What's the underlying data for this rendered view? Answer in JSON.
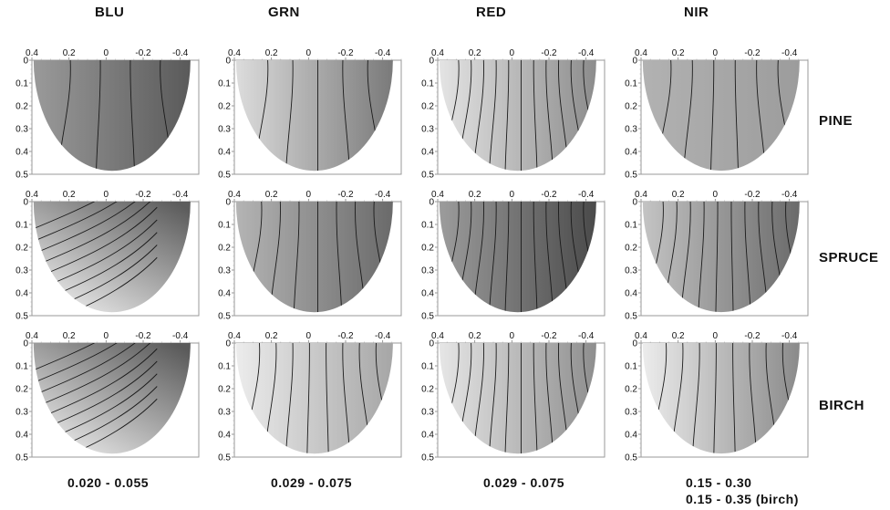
{
  "figure": {
    "columns": [
      "BLU",
      "GRN",
      "RED",
      "NIR"
    ],
    "rows": [
      "PINE",
      "SPRUCE",
      "BIRCH"
    ],
    "ranges": [
      [
        "0.020 - 0.055"
      ],
      [
        "0.029 - 0.075"
      ],
      [
        "0.029 - 0.075"
      ],
      [
        "0.15 - 0.30",
        "0.15 - 0.35 (birch)"
      ]
    ]
  },
  "chart_data": {
    "type": "heatmap",
    "panel_count": 12,
    "x_ticks": [
      "0.4",
      "0.2",
      "0",
      "-0.2",
      "-0.4"
    ],
    "y_ticks": [
      "0",
      "0.1",
      "0.2",
      "0.3",
      "0.4",
      "0.5"
    ],
    "xlim": [
      0.4,
      -0.5
    ],
    "ylim": [
      0,
      0.5
    ],
    "x_axis_position": "top",
    "grid": false,
    "colormap": "grayscale",
    "panels": [
      {
        "row": "PINE",
        "column": "BLU",
        "contour_lines": 4,
        "gradient": "left-light-to-right-dark"
      },
      {
        "row": "PINE",
        "column": "GRN",
        "contour_lines": 5,
        "gradient": "left-light-to-right-dark"
      },
      {
        "row": "PINE",
        "column": "RED",
        "contour_lines": 11,
        "gradient": "left-light-to-right-dark"
      },
      {
        "row": "PINE",
        "column": "NIR",
        "contour_lines": 6,
        "gradient": "left-light-to-right-dark"
      },
      {
        "row": "SPRUCE",
        "column": "BLU",
        "contour_lines": 9,
        "gradient": "bottom-left-light-to-top-right-dark"
      },
      {
        "row": "SPRUCE",
        "column": "GRN",
        "contour_lines": 7,
        "gradient": "left-light-to-right-dark"
      },
      {
        "row": "SPRUCE",
        "column": "RED",
        "contour_lines": 11,
        "gradient": "left-light-to-right-dark"
      },
      {
        "row": "SPRUCE",
        "column": "NIR",
        "contour_lines": 10,
        "gradient": "left-light-to-right-dark"
      },
      {
        "row": "BIRCH",
        "column": "BLU",
        "contour_lines": 9,
        "gradient": "bottom-left-light-to-top-right-dark"
      },
      {
        "row": "BIRCH",
        "column": "GRN",
        "contour_lines": 8,
        "gradient": "left-light-to-right-dark"
      },
      {
        "row": "BIRCH",
        "column": "RED",
        "contour_lines": 11,
        "gradient": "left-light-to-right-dark"
      },
      {
        "row": "BIRCH",
        "column": "NIR",
        "contour_lines": 8,
        "gradient": "left-light-to-right-dark"
      }
    ],
    "colors": {
      "pine_blu": [
        "#9a9a9a",
        "#5a5a5a"
      ],
      "pine_grn": [
        "#dcdcdc",
        "#7a7a7a"
      ],
      "pine_red": [
        "#e4e4e4",
        "#8c8c8c"
      ],
      "pine_nir": [
        "#b2b2b2",
        "#9c9c9c"
      ],
      "spruce_blu": [
        "#f2f2f2",
        "#5c5c5c"
      ],
      "spruce_grn": [
        "#b4b4b4",
        "#6a6a6a"
      ],
      "spruce_red": [
        "#9c9c9c",
        "#4a4a4a"
      ],
      "spruce_nir": [
        "#c4c4c4",
        "#6a6a6a"
      ],
      "birch_blu": [
        "#f0f0f0",
        "#5a5a5a"
      ],
      "birch_grn": [
        "#ececec",
        "#a6a6a6"
      ],
      "birch_red": [
        "#e6e6e6",
        "#8e8e8e"
      ],
      "birch_nir": [
        "#ececec",
        "#8a8a8a"
      ]
    }
  }
}
